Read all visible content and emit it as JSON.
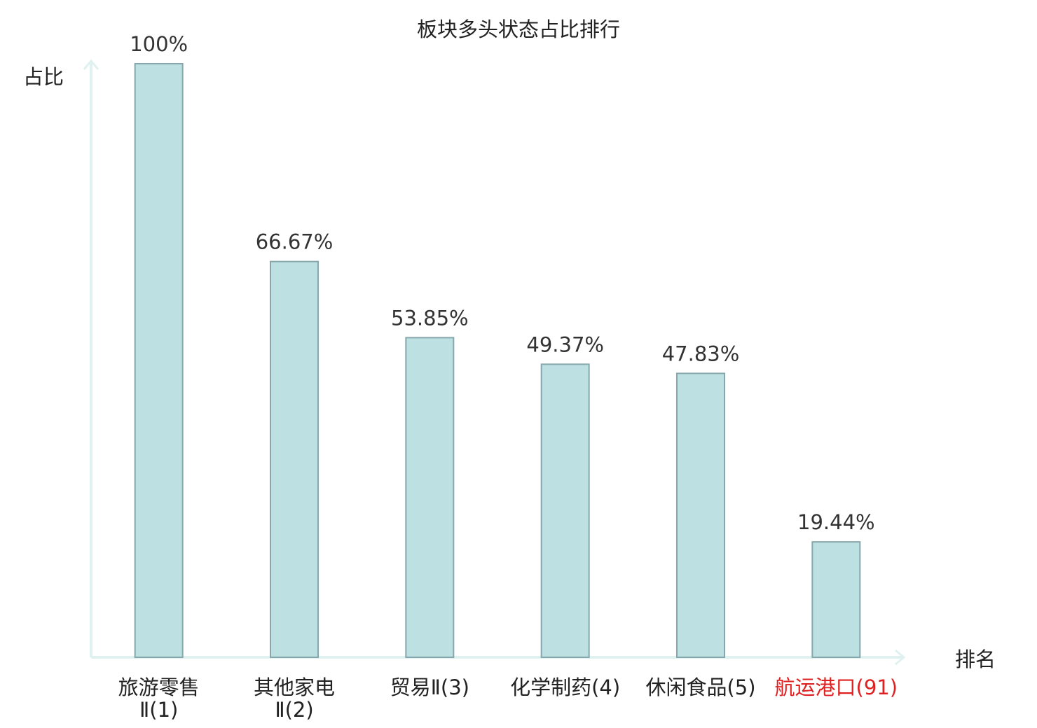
{
  "chart_data": {
    "type": "bar",
    "title": "板块多头状态占比排行",
    "y_label": "占比",
    "x_label": "排名",
    "categories": [
      "旅游零售\nⅡ(1)",
      "其他家电\nⅡ(2)",
      "贸易Ⅱ(3)",
      "化学制药(4)",
      "休闲食品(5)",
      "航运港口(91)"
    ],
    "values": [
      100,
      66.67,
      53.85,
      49.37,
      47.83,
      19.44
    ],
    "value_labels": [
      "100%",
      "66.67%",
      "53.85%",
      "49.37%",
      "47.83%",
      "19.44%"
    ],
    "label_colors": [
      "#222222",
      "#222222",
      "#222222",
      "#222222",
      "#222222",
      "#e02020"
    ],
    "color": "#bde0e3",
    "edge_color": "#86a7ab",
    "axis_color": "#dff2ef",
    "ylim": [
      0,
      100
    ]
  }
}
